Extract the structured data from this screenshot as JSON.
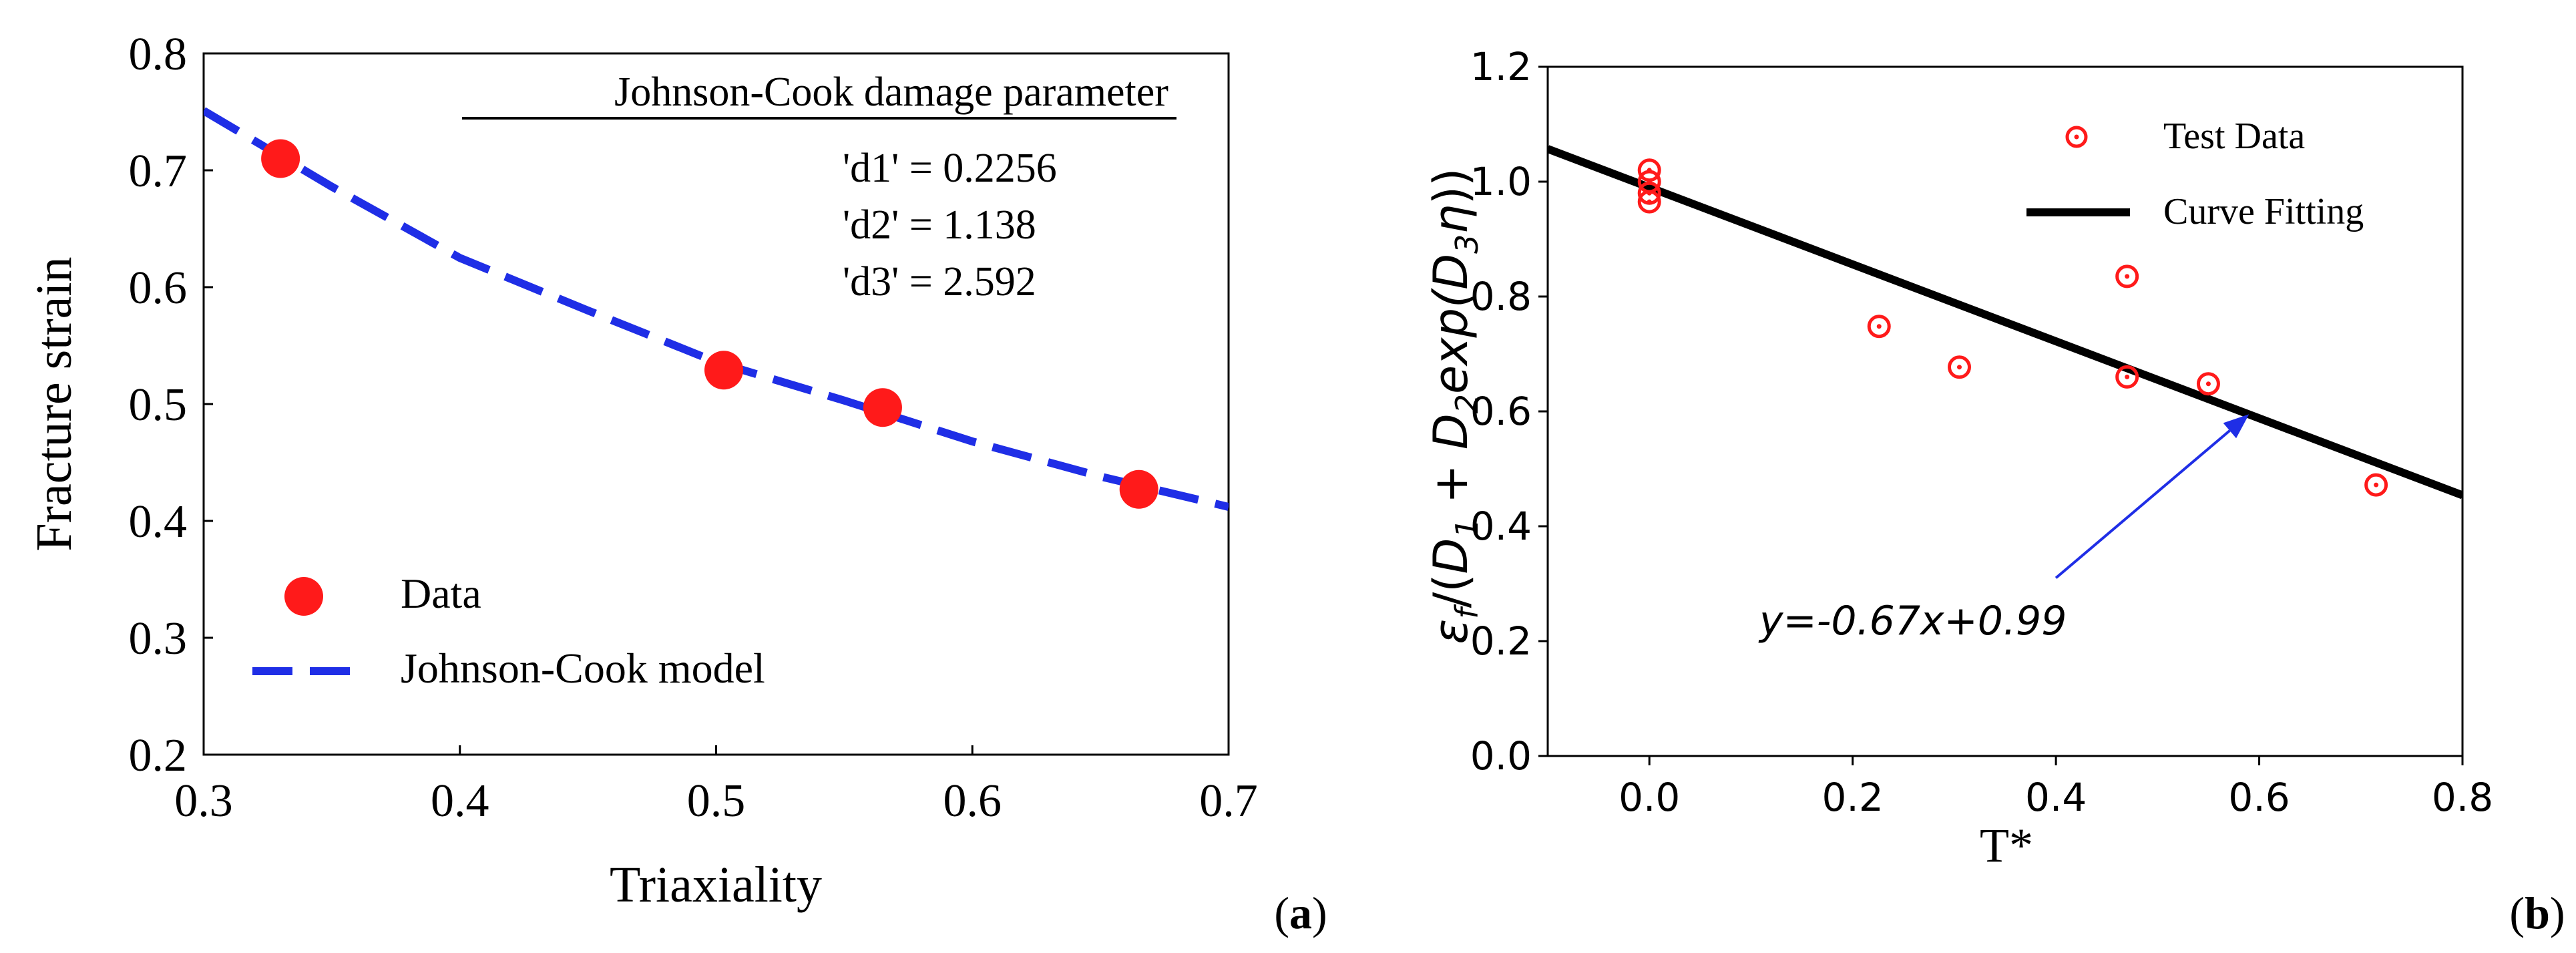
{
  "colors": {
    "data_red": "#ff1a1a",
    "model_blue": "#1f2ee6",
    "fit_black": "#000000",
    "arrow_blue": "#1f2ee6"
  },
  "chart_data": [
    {
      "type": "scatter",
      "panel_label": "(a)",
      "panel_letter": "a",
      "xlabel": "Triaxiality",
      "ylabel": "Fracture strain",
      "xlim": [
        0.3,
        0.7
      ],
      "ylim": [
        0.2,
        0.8
      ],
      "xticks": [
        "0.3",
        "0.4",
        "0.5",
        "0.6",
        "0.7"
      ],
      "yticks": [
        "0.2",
        "0.3",
        "0.4",
        "0.5",
        "0.6",
        "0.7",
        "0.8"
      ],
      "series": [
        {
          "name": "Data",
          "marker": "filled-circle",
          "x": [
            0.33,
            0.503,
            0.565,
            0.665
          ],
          "y": [
            0.71,
            0.529,
            0.497,
            0.427
          ]
        },
        {
          "name": "Johnson-Cook model",
          "style": "dashed-line",
          "x": [
            0.3,
            0.35,
            0.4,
            0.45,
            0.5,
            0.55,
            0.6,
            0.65,
            0.7
          ],
          "y": [
            0.751,
            0.686,
            0.625,
            0.58,
            0.536,
            0.503,
            0.468,
            0.438,
            0.412
          ]
        }
      ],
      "legend": [
        "Data",
        "Johnson-Cook model"
      ],
      "legend_position": "bottom-left",
      "annotation": {
        "title": "Johnson-Cook damage parameter",
        "lines": [
          "'d1' = 0.2256",
          "'d2' = 1.138",
          "'d3' = 2.592"
        ]
      }
    },
    {
      "type": "scatter",
      "panel_label": "(b)",
      "panel_letter": "b",
      "xlabel": "T*",
      "ylabel": "εf/(D1 + D2exp(D3η))",
      "ylabel_parts": {
        "eps": "ε",
        "sub_f": "f",
        "open": "/(",
        "d": "D",
        "sub_1": "1",
        "plus": " + ",
        "sub_2": "2",
        "exp": "exp(",
        "sub_3": "3",
        "eta": "η",
        "close": "))"
      },
      "xlim": [
        -0.1,
        0.8
      ],
      "ylim": [
        0.0,
        1.2
      ],
      "xticks": [
        "0.0",
        "0.2",
        "0.4",
        "0.6",
        "0.8"
      ],
      "yticks": [
        "0.0",
        "0.2",
        "0.4",
        "0.6",
        "0.8",
        "1.0",
        "1.2"
      ],
      "series": [
        {
          "name": "Test Data",
          "marker": "open-circle-dot",
          "x": [
            0.0,
            0.0,
            0.0,
            0.0,
            0.226,
            0.305,
            0.47,
            0.47,
            0.55,
            0.715
          ],
          "y": [
            1.02,
            1.0,
            0.98,
            0.965,
            0.748,
            0.677,
            0.835,
            0.66,
            0.648,
            0.472
          ]
        },
        {
          "name": "Curve Fitting",
          "style": "solid-line",
          "x": [
            -0.1,
            0.8
          ],
          "y": [
            1.057,
            0.454
          ]
        }
      ],
      "legend": [
        "Test Data",
        "Curve Fitting"
      ],
      "legend_position": "top-right",
      "annotation": {
        "text": "y=-0.67x+0.99",
        "arrow_from": [
          0.4,
          0.31
        ],
        "arrow_to": [
          0.59,
          0.595
        ]
      }
    }
  ]
}
